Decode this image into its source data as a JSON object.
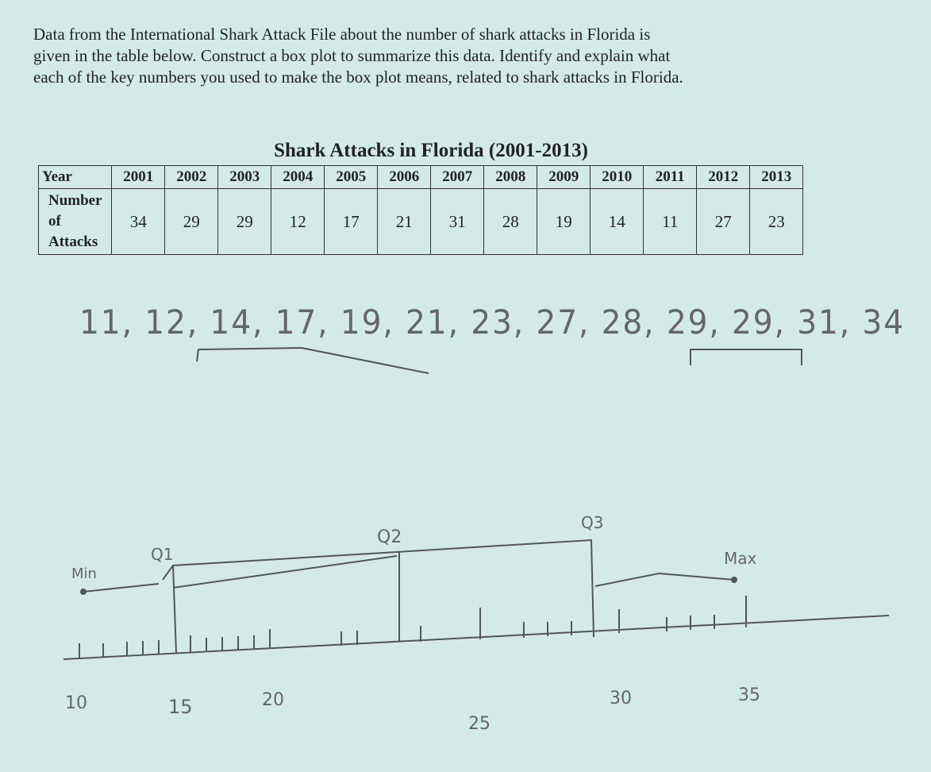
{
  "problem": {
    "lines": [
      "Data from the International Shark Attack File about the number of shark attacks in Florida is",
      "given in the table below.  Construct a box plot to summarize this data.  Identify and explain what",
      "each of the key numbers you used to make the box plot means, related to shark attacks in Florida."
    ]
  },
  "table": {
    "title": "Shark Attacks in Florida (2001-2013)",
    "row_headers": [
      "Year",
      "Number of Attacks"
    ],
    "years": [
      "2001",
      "2002",
      "2003",
      "2004",
      "2005",
      "2006",
      "2007",
      "2008",
      "2009",
      "2010",
      "2011",
      "2012",
      "2013"
    ],
    "attacks": [
      "34",
      "29",
      "29",
      "12",
      "17",
      "21",
      "31",
      "28",
      "19",
      "14",
      "11",
      "27",
      "23"
    ]
  },
  "handwriting": {
    "sorted_list": "11, 12, 14, 17, 19, 21, 23, 27, 28, 29, 29, 31, 34",
    "labels": [
      "Min",
      "Q1",
      "Q2",
      "Q3",
      "Max"
    ],
    "axis_labels": [
      "10",
      "15",
      "20",
      "25",
      "30",
      "35"
    ]
  }
}
